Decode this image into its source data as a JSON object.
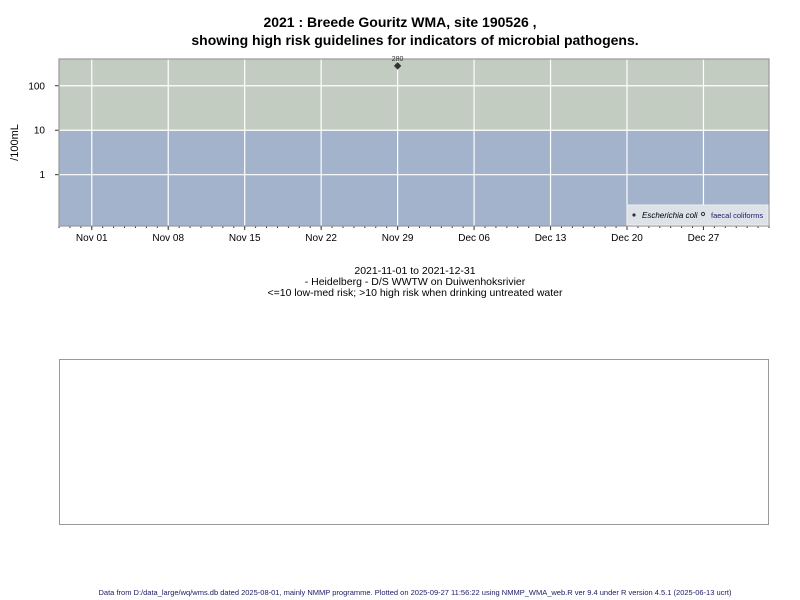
{
  "title_line1": "2021 : Breede Gouritz WMA, site 190526 ,",
  "title_line2": "showing high risk guidelines for indicators of microbial pathogens.",
  "subtitle": {
    "date_range": "2021-11-01 to 2021-12-31",
    "site": "- Heidelberg - D/S WWTW on Duiwenhoksrivier",
    "risk_note": "<=10 low-med risk; >10 high risk when drinking untreated water"
  },
  "footer": "Data from D:/data_large/wq/wms.db dated 2025-08-01, mainly NMMP programme. Plotted on 2025-09-27 11:56:22 using NMMP_WMA_web.R ver 9.4 under R version 4.5.1 (2025-06-13 ucrt)",
  "chart_data": {
    "type": "scatter",
    "ylabel": "/100mL",
    "y_scale": "log",
    "ylim": [
      0.07,
      400
    ],
    "xlim": [
      "2021-10-29",
      "2022-01-02"
    ],
    "y_ticks": [
      {
        "value": 1,
        "label": "1"
      },
      {
        "value": 10,
        "label": "10"
      },
      {
        "value": 100,
        "label": "100"
      }
    ],
    "x_ticks": [
      {
        "date": "2021-11-01",
        "label": "Nov 01"
      },
      {
        "date": "2021-11-08",
        "label": "Nov 08"
      },
      {
        "date": "2021-11-15",
        "label": "Nov 15"
      },
      {
        "date": "2021-11-22",
        "label": "Nov 22"
      },
      {
        "date": "2021-11-29",
        "label": "Nov 29"
      },
      {
        "date": "2021-12-06",
        "label": "Dec 06"
      },
      {
        "date": "2021-12-13",
        "label": "Dec 13"
      },
      {
        "date": "2021-12-20",
        "label": "Dec 20"
      },
      {
        "date": "2021-12-27",
        "label": "Dec 27"
      }
    ],
    "grid": true,
    "bands": [
      {
        "from": 0.07,
        "to": 10,
        "color": "#a3b3cb",
        "meaning": "low-med risk"
      },
      {
        "from": 10,
        "to": 400,
        "color": "#c3ccc1",
        "meaning": "high risk"
      }
    ],
    "series": [
      {
        "name": "Escherichia coli",
        "marker": "filled",
        "points": [
          {
            "date": "2021-11-29",
            "value": 280,
            "label": "280"
          }
        ]
      },
      {
        "name": "faecal coliforms",
        "marker": "open",
        "points": []
      }
    ],
    "legend_position": "bottom-right"
  }
}
